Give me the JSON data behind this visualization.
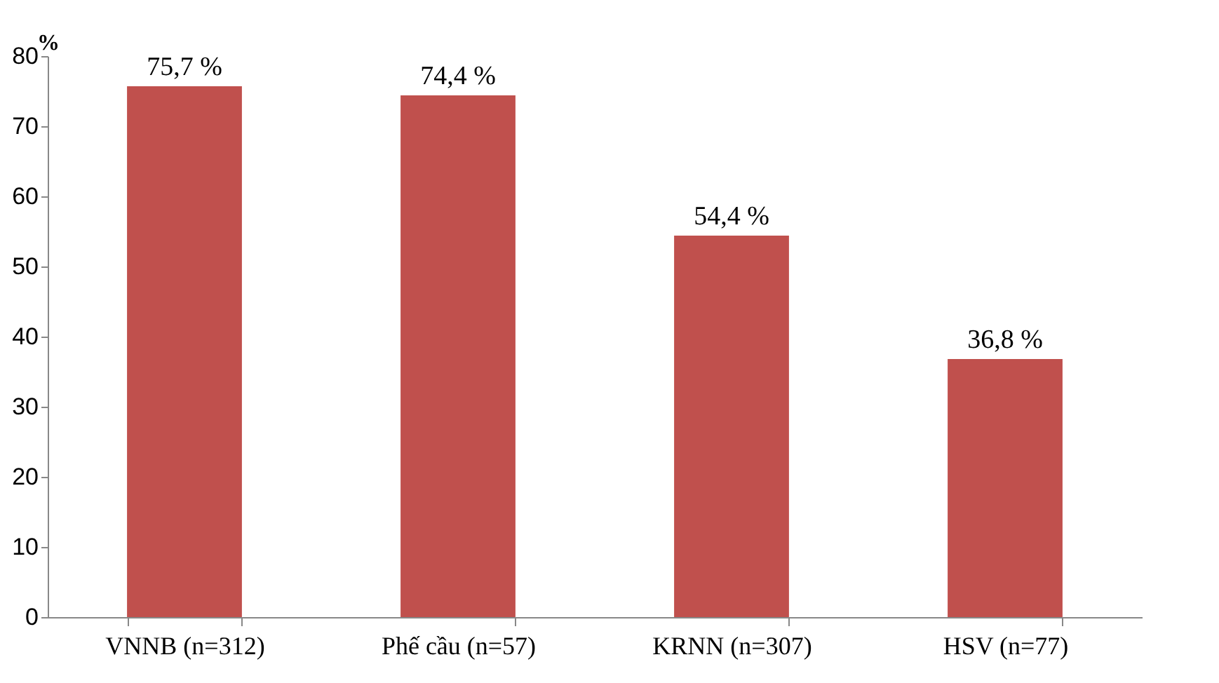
{
  "chart_data": {
    "type": "bar",
    "ylabel": "%",
    "categories": [
      "VNNB (n=312)",
      "Phế cầu (n=57)",
      "KRNN (n=307)",
      "HSV (n=77)"
    ],
    "values": [
      75.7,
      74.4,
      54.4,
      36.8
    ],
    "value_labels": [
      "75,7 %",
      "74,4 %",
      "54,4 %",
      "36,8 %"
    ],
    "color": "#c0504d",
    "ylim": [
      0,
      80
    ],
    "yticks": [
      0,
      10,
      20,
      30,
      40,
      50,
      60,
      70,
      80
    ],
    "grid": false
  }
}
